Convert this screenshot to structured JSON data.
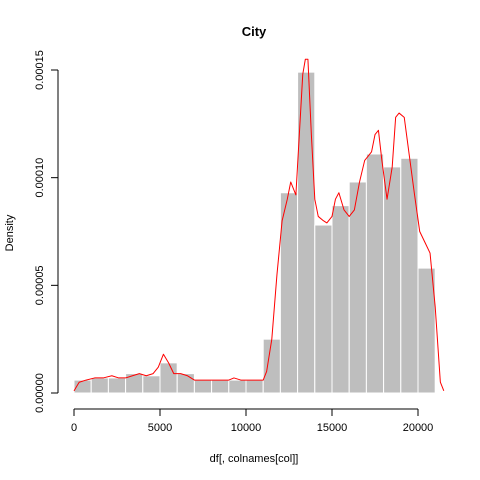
{
  "chart_data": {
    "type": "bar",
    "title": "City",
    "xlabel": "df[, colnames[col]]",
    "ylabel": "Density",
    "xlim": [
      -1000,
      22000
    ],
    "ylim": [
      0,
      0.00015
    ],
    "x_ticks": [
      0,
      5000,
      10000,
      15000,
      20000
    ],
    "x_tick_labels": [
      "0",
      "5000",
      "10000",
      "15000",
      "20000"
    ],
    "y_ticks": [
      0,
      5e-05,
      0.0001,
      0.00015
    ],
    "y_tick_labels": [
      "0.00000",
      "0.00005",
      "0.00010",
      "0.00015"
    ],
    "bin_edges": [
      0,
      1000,
      2000,
      3000,
      4000,
      5000,
      6000,
      7000,
      8000,
      9000,
      10000,
      11000,
      12000,
      13000,
      14000,
      15000,
      16000,
      17000,
      18000,
      19000,
      20000,
      21000
    ],
    "values": [
      6e-06,
      7e-06,
      7e-06,
      9e-06,
      8e-06,
      1.4e-05,
      9e-06,
      6e-06,
      6e-06,
      6e-06,
      6e-06,
      2.5e-05,
      9.3e-05,
      0.000149,
      7.8e-05,
      8.7e-05,
      9.8e-05,
      0.000111,
      0.000105,
      0.000109,
      5.8e-05
    ],
    "bar_color": "#bebebe",
    "bar_border": "#ffffff",
    "density_color": "#ff0000",
    "density_line": [
      [
        0,
        1e-06
      ],
      [
        300,
        5e-06
      ],
      [
        700,
        6e-06
      ],
      [
        1200,
        7e-06
      ],
      [
        1700,
        7e-06
      ],
      [
        2200,
        8e-06
      ],
      [
        2600,
        7e-06
      ],
      [
        3000,
        7e-06
      ],
      [
        3400,
        8e-06
      ],
      [
        3800,
        9e-06
      ],
      [
        4200,
        8e-06
      ],
      [
        4600,
        9e-06
      ],
      [
        4900,
        1.2e-05
      ],
      [
        5200,
        1.8e-05
      ],
      [
        5500,
        1.4e-05
      ],
      [
        5800,
        9e-06
      ],
      [
        6200,
        9e-06
      ],
      [
        6600,
        8e-06
      ],
      [
        7000,
        6e-06
      ],
      [
        7500,
        6e-06
      ],
      [
        8000,
        6e-06
      ],
      [
        8500,
        6e-06
      ],
      [
        9000,
        6e-06
      ],
      [
        9300,
        7e-06
      ],
      [
        9700,
        6e-06
      ],
      [
        10200,
        6e-06
      ],
      [
        10700,
        6e-06
      ],
      [
        11000,
        6e-06
      ],
      [
        11200,
        1e-05
      ],
      [
        11500,
        2.5e-05
      ],
      [
        11800,
        5.5e-05
      ],
      [
        12100,
        8e-05
      ],
      [
        12400,
        9e-05
      ],
      [
        12600,
        9.8e-05
      ],
      [
        12900,
        9.2e-05
      ],
      [
        13100,
        0.00012
      ],
      [
        13300,
        0.000148
      ],
      [
        13450,
        0.000155
      ],
      [
        13600,
        0.000155
      ],
      [
        13800,
        0.00012
      ],
      [
        14000,
        9e-05
      ],
      [
        14200,
        8.2e-05
      ],
      [
        14500,
        8e-05
      ],
      [
        14700,
        7.9e-05
      ],
      [
        15000,
        8.2e-05
      ],
      [
        15200,
        9e-05
      ],
      [
        15400,
        9.3e-05
      ],
      [
        15700,
        8.5e-05
      ],
      [
        16000,
        8.2e-05
      ],
      [
        16300,
        8.5e-05
      ],
      [
        16600,
        9.8e-05
      ],
      [
        16900,
        0.000108
      ],
      [
        17100,
        0.00011
      ],
      [
        17300,
        0.000112
      ],
      [
        17500,
        0.00012
      ],
      [
        17700,
        0.000122
      ],
      [
        17900,
        0.000108
      ],
      [
        18200,
        9e-05
      ],
      [
        18500,
        0.000105
      ],
      [
        18700,
        0.000128
      ],
      [
        18900,
        0.00013
      ],
      [
        19200,
        0.000128
      ],
      [
        19500,
        0.00011
      ],
      [
        19800,
        9.2e-05
      ],
      [
        20100,
        7.5e-05
      ],
      [
        20400,
        7e-05
      ],
      [
        20700,
        6.5e-05
      ],
      [
        21000,
        4e-05
      ],
      [
        21300,
        5e-06
      ],
      [
        21500,
        1e-06
      ]
    ]
  }
}
